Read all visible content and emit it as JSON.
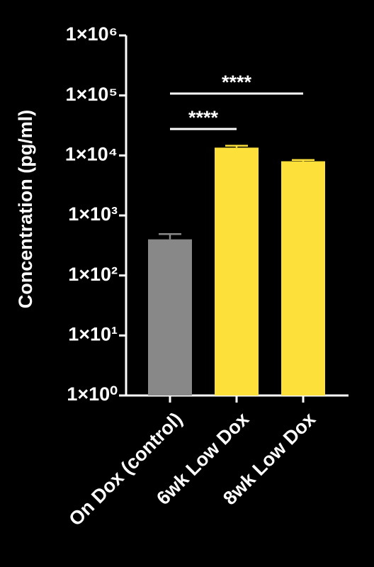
{
  "chart_data": {
    "type": "bar",
    "log_scale": true,
    "y_label": "Concentration (pg/ml)",
    "categories": [
      "On Dox (control)",
      "6wk Low Dox",
      "8wk Low Dox"
    ],
    "values": [
      400,
      13500,
      8000
    ],
    "errors": [
      90,
      1000,
      400
    ],
    "colors": [
      "#888888",
      "#fde03a",
      "#fde03a"
    ],
    "ylim": [
      1,
      1000000
    ],
    "yticks": [
      {
        "value": 1,
        "label": "1×10⁰"
      },
      {
        "value": 10,
        "label": "1×10¹"
      },
      {
        "value": 100,
        "label": "1×10²"
      },
      {
        "value": 1000,
        "label": "1×10³"
      },
      {
        "value": 10000,
        "label": "1×10⁴"
      },
      {
        "value": 100000,
        "label": "1×10⁵"
      },
      {
        "value": 1000000,
        "label": "1×10⁶"
      }
    ],
    "annotations": [
      "****",
      "****"
    ]
  }
}
